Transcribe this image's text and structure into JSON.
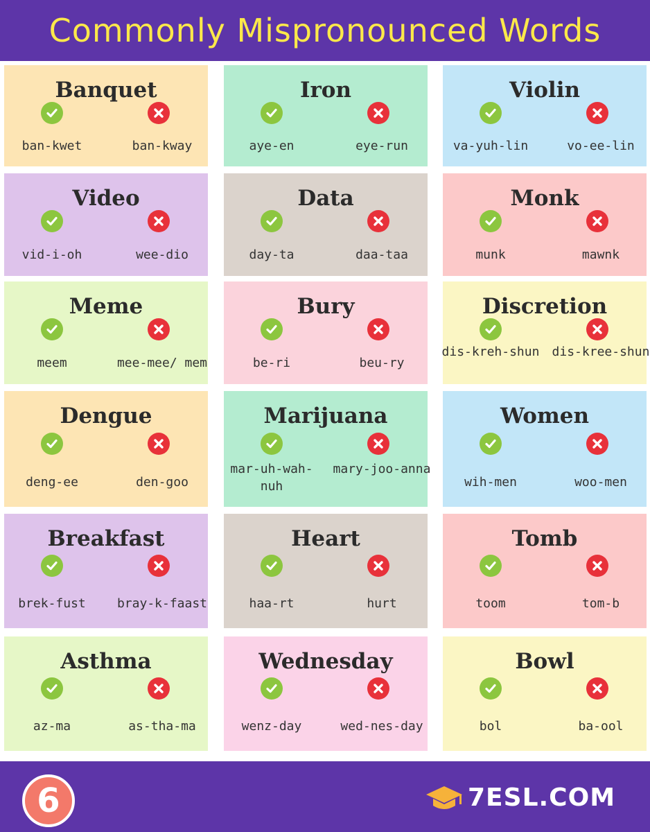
{
  "header": {
    "title": "Commonly Mispronounced Words"
  },
  "colors": {
    "header_bg": "#5d35a8",
    "title": "#fbe84a",
    "correct": "#8cc63f",
    "incorrect": "#e8313a"
  },
  "icons": {
    "correct": "check-icon",
    "incorrect": "cross-icon"
  },
  "cards": [
    {
      "word": "Banquet",
      "correct": "ban-kwet",
      "incorrect": "ban-kway",
      "bg": "#fde5b4"
    },
    {
      "word": "Iron",
      "correct": "aye-en",
      "incorrect": "eye-run",
      "bg": "#b4ecd0"
    },
    {
      "word": "Violin",
      "correct": "va-yuh-lin",
      "incorrect": "vo-ee-lin",
      "bg": "#c2e6f8"
    },
    {
      "word": "Video",
      "correct": "vid-i-oh",
      "incorrect": "wee-dio",
      "bg": "#dec3eb"
    },
    {
      "word": "Data",
      "correct": "day-ta",
      "incorrect": "daa-taa",
      "bg": "#dbd3cc"
    },
    {
      "word": "Monk",
      "correct": "munk",
      "incorrect": "mawnk",
      "bg": "#fcc9c9"
    },
    {
      "word": "Meme",
      "correct": "meem",
      "incorrect": "mee-mee/ mem",
      "bg": "#e6f7c7"
    },
    {
      "word": "Bury",
      "correct": "be-ri",
      "incorrect": "beu-ry",
      "bg": "#fbd3dc"
    },
    {
      "word": "Discretion",
      "correct": "dis-kreh-shun",
      "incorrect": "dis-kree-shun",
      "bg": "#fbf6c4"
    },
    {
      "word": "Dengue",
      "correct": "deng-ee",
      "incorrect": "den-goo",
      "bg": "#fde5b4"
    },
    {
      "word": "Marijuana",
      "correct": "mar-uh-wah-nuh",
      "incorrect": "mary-joo-anna",
      "bg": "#b4ecd0"
    },
    {
      "word": "Women",
      "correct": "wih-men",
      "incorrect": "woo-men",
      "bg": "#c2e6f8"
    },
    {
      "word": "Breakfast",
      "correct": "brek-fust",
      "incorrect": "bray-k-faast",
      "bg": "#dec3eb"
    },
    {
      "word": "Heart",
      "correct": "haa-rt",
      "incorrect": "hurt",
      "bg": "#dbd3cc"
    },
    {
      "word": "Tomb",
      "correct": "toom",
      "incorrect": "tom-b",
      "bg": "#fcc9c9"
    },
    {
      "word": "Asthma",
      "correct": "az-ma",
      "incorrect": "as-tha-ma",
      "bg": "#e6f7c7"
    },
    {
      "word": "Wednesday",
      "correct": "wenz-day",
      "incorrect": "wed-nes-day",
      "bg": "#fbd3e8"
    },
    {
      "word": "Bowl",
      "correct": "bol",
      "incorrect": "ba-ool",
      "bg": "#fbf6c4"
    }
  ],
  "footer": {
    "page_number": "6",
    "brand": "7ESL.COM",
    "brand_icon": "graduation-cap-icon"
  }
}
